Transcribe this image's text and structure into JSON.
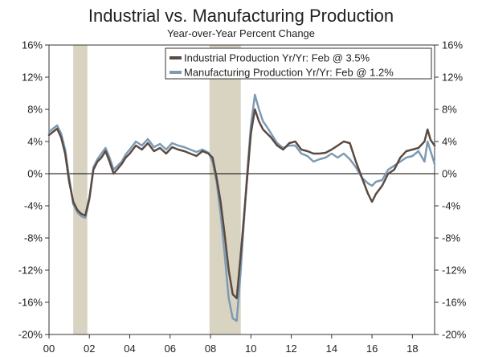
{
  "chart_data": {
    "type": "line",
    "title": "Industrial vs. Manufacturing Production",
    "subtitle": "Year-over-Year Percent Change",
    "xlabel": "",
    "ylabel": "",
    "x_range": [
      2000.0,
      2019.1
    ],
    "ylim": [
      -20,
      16
    ],
    "x_ticks": [
      {
        "value": 2000,
        "label": "00"
      },
      {
        "value": 2002,
        "label": "02"
      },
      {
        "value": 2004,
        "label": "04"
      },
      {
        "value": 2006,
        "label": "06"
      },
      {
        "value": 2008,
        "label": "08"
      },
      {
        "value": 2010,
        "label": "10"
      },
      {
        "value": 2012,
        "label": "12"
      },
      {
        "value": 2014,
        "label": "14"
      },
      {
        "value": 2016,
        "label": "16"
      },
      {
        "value": 2018,
        "label": "18"
      }
    ],
    "y_ticks": [
      {
        "value": 16,
        "label": "16%"
      },
      {
        "value": 12,
        "label": "12%"
      },
      {
        "value": 8,
        "label": "8%"
      },
      {
        "value": 4,
        "label": "4%"
      },
      {
        "value": 0,
        "label": "0%"
      },
      {
        "value": -4,
        "label": "-4%"
      },
      {
        "value": -8,
        "label": "-8%"
      },
      {
        "value": -12,
        "label": "-12%"
      },
      {
        "value": -16,
        "label": "-16%"
      },
      {
        "value": -20,
        "label": "-20%"
      }
    ],
    "zero_line": 0,
    "recessions": [
      {
        "start": 2001.2,
        "end": 2001.9
      },
      {
        "start": 2007.95,
        "end": 2009.5
      }
    ],
    "legend_position": "top-right",
    "series": [
      {
        "name": "Industrial Production Yr/Yr: Feb @ 3.5%",
        "color": "#5a4a42",
        "x": [
          2000.0,
          2000.2,
          2000.4,
          2000.6,
          2000.8,
          2001.0,
          2001.2,
          2001.4,
          2001.6,
          2001.8,
          2002.0,
          2002.2,
          2002.4,
          2002.6,
          2002.8,
          2003.0,
          2003.2,
          2003.4,
          2003.6,
          2003.8,
          2004.0,
          2004.3,
          2004.6,
          2004.9,
          2005.2,
          2005.5,
          2005.8,
          2006.1,
          2006.4,
          2006.7,
          2007.0,
          2007.3,
          2007.6,
          2007.9,
          2008.1,
          2008.3,
          2008.5,
          2008.7,
          2008.9,
          2009.1,
          2009.3,
          2009.5,
          2009.6,
          2009.8,
          2010.0,
          2010.2,
          2010.4,
          2010.6,
          2010.8,
          2011.0,
          2011.3,
          2011.6,
          2011.9,
          2012.2,
          2012.5,
          2012.8,
          2013.1,
          2013.4,
          2013.7,
          2014.0,
          2014.3,
          2014.6,
          2014.9,
          2015.2,
          2015.5,
          2015.8,
          2016.0,
          2016.2,
          2016.5,
          2016.8,
          2017.1,
          2017.4,
          2017.7,
          2018.0,
          2018.3,
          2018.6,
          2018.75,
          2018.9,
          2019.1
        ],
        "values": [
          4.8,
          5.2,
          5.6,
          4.5,
          2.5,
          -1.0,
          -3.5,
          -4.5,
          -5.0,
          -5.2,
          -3.0,
          0.5,
          1.5,
          2.0,
          2.8,
          1.5,
          0.0,
          0.6,
          1.2,
          2.0,
          2.5,
          3.5,
          3.0,
          3.8,
          2.8,
          3.2,
          2.5,
          3.3,
          3.0,
          2.8,
          2.5,
          2.2,
          2.8,
          2.5,
          2.0,
          -0.5,
          -3.5,
          -7.5,
          -12.0,
          -15.0,
          -15.5,
          -10.0,
          -7.0,
          -1.0,
          5.0,
          8.0,
          6.5,
          5.5,
          5.0,
          4.5,
          3.5,
          3.0,
          3.8,
          4.0,
          3.0,
          2.8,
          2.5,
          2.5,
          2.6,
          3.0,
          3.5,
          4.0,
          3.8,
          1.5,
          -0.5,
          -2.5,
          -3.5,
          -2.5,
          -1.5,
          0.0,
          0.5,
          2.0,
          2.8,
          3.0,
          3.2,
          4.0,
          5.5,
          4.2,
          3.5
        ]
      },
      {
        "name": "Manufacturing Production Yr/Yr: Feb @ 1.2%",
        "color": "#7d9ab3",
        "x": [
          2000.0,
          2000.2,
          2000.4,
          2000.6,
          2000.8,
          2001.0,
          2001.2,
          2001.4,
          2001.6,
          2001.8,
          2002.0,
          2002.2,
          2002.4,
          2002.6,
          2002.8,
          2003.0,
          2003.2,
          2003.4,
          2003.6,
          2003.8,
          2004.0,
          2004.3,
          2004.6,
          2004.9,
          2005.2,
          2005.5,
          2005.8,
          2006.1,
          2006.4,
          2006.7,
          2007.0,
          2007.3,
          2007.6,
          2007.9,
          2008.1,
          2008.3,
          2008.5,
          2008.7,
          2008.9,
          2009.1,
          2009.3,
          2009.5,
          2009.6,
          2009.8,
          2010.0,
          2010.2,
          2010.4,
          2010.6,
          2010.8,
          2011.0,
          2011.3,
          2011.6,
          2011.9,
          2012.2,
          2012.5,
          2012.8,
          2013.1,
          2013.4,
          2013.7,
          2014.0,
          2014.3,
          2014.6,
          2014.9,
          2015.2,
          2015.5,
          2015.8,
          2016.0,
          2016.2,
          2016.5,
          2016.8,
          2017.1,
          2017.4,
          2017.7,
          2018.0,
          2018.3,
          2018.6,
          2018.75,
          2018.9,
          2019.1
        ],
        "values": [
          5.2,
          5.6,
          6.0,
          5.0,
          3.0,
          -0.5,
          -3.8,
          -4.8,
          -5.3,
          -5.5,
          -3.2,
          0.8,
          1.8,
          2.5,
          3.2,
          2.0,
          0.5,
          1.0,
          1.5,
          2.4,
          3.0,
          4.0,
          3.5,
          4.3,
          3.3,
          3.7,
          3.0,
          3.8,
          3.5,
          3.3,
          3.0,
          2.7,
          3.0,
          2.6,
          1.5,
          -1.0,
          -5.0,
          -10.0,
          -15.5,
          -18.0,
          -18.3,
          -12.0,
          -8.0,
          -0.5,
          6.0,
          9.8,
          8.0,
          6.5,
          5.8,
          5.0,
          3.8,
          3.2,
          3.5,
          3.5,
          2.5,
          2.2,
          1.5,
          1.8,
          2.0,
          2.5,
          2.0,
          2.5,
          1.8,
          0.8,
          -0.5,
          -1.2,
          -1.5,
          -1.0,
          -0.8,
          0.5,
          1.0,
          1.5,
          2.0,
          2.2,
          2.8,
          1.5,
          4.0,
          2.8,
          1.2
        ]
      }
    ]
  }
}
